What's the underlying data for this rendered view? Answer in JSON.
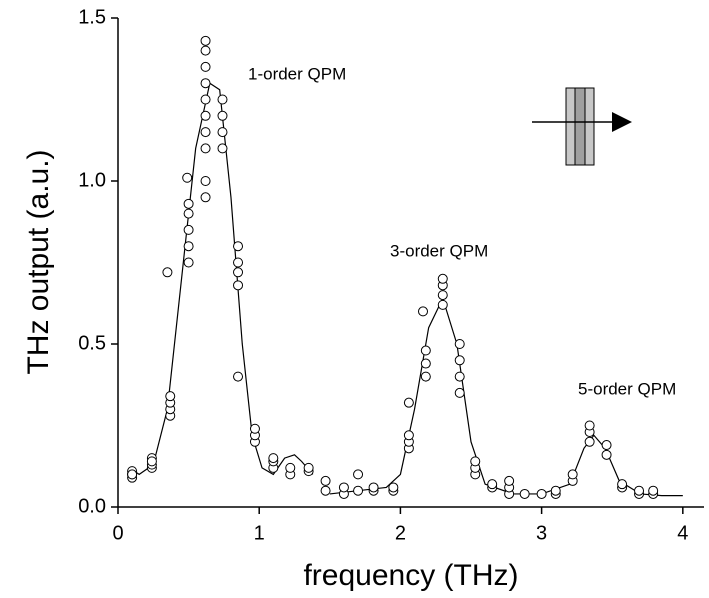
{
  "chart_data": {
    "type": "scatter",
    "xlabel": "frequency (THz)",
    "ylabel": "THz output (a.u.)",
    "xlim": [
      0,
      4.15
    ],
    "ylim": [
      0,
      1.5
    ],
    "xticks": [
      0,
      1,
      2,
      3,
      4
    ],
    "yticks": [
      {
        "value": 0,
        "label": "0.0"
      },
      0.5,
      {
        "value": 1,
        "label": "1.0"
      },
      1.5
    ],
    "annotations": [
      "1-order QPM",
      "3-order QPM",
      "5-order QPM"
    ],
    "series": [
      {
        "type": "scatter",
        "color": "#000000",
        "x": [
          0.1,
          0.1,
          0.1,
          0.1,
          0.24,
          0.24,
          0.24,
          0.24,
          0.37,
          0.37,
          0.37,
          0.37,
          0.35,
          0.5,
          0.5,
          0.5,
          0.5,
          0.5,
          0.49,
          0.62,
          0.62,
          0.62,
          0.62,
          0.62,
          0.62,
          0.62,
          0.62,
          0.62,
          0.62,
          0.74,
          0.74,
          0.74,
          0.74,
          0.85,
          0.85,
          0.85,
          0.85,
          0.85,
          0.97,
          0.97,
          0.97,
          1.1,
          1.1,
          1.1,
          1.22,
          1.22,
          1.35,
          1.35,
          1.47,
          1.47,
          1.6,
          1.6,
          1.7,
          1.7,
          1.81,
          1.81,
          1.95,
          1.95,
          2.06,
          2.06,
          2.06,
          2.06,
          2.18,
          2.18,
          2.18,
          2.16,
          2.3,
          2.3,
          2.3,
          2.3,
          2.42,
          2.42,
          2.42,
          2.42,
          2.53,
          2.53,
          2.53,
          2.65,
          2.65,
          2.77,
          2.77,
          2.77,
          2.88,
          3.0,
          3.1,
          3.1,
          3.22,
          3.22,
          3.34,
          3.34,
          3.34,
          3.46,
          3.46,
          3.57,
          3.57,
          3.69,
          3.69,
          3.79,
          3.79
        ],
        "values": [
          0.09,
          0.1,
          0.11,
          0.1,
          0.12,
          0.13,
          0.15,
          0.14,
          0.28,
          0.3,
          0.32,
          0.34,
          0.72,
          0.75,
          0.8,
          0.85,
          0.9,
          0.93,
          1.01,
          0.95,
          1.0,
          1.1,
          1.15,
          1.2,
          1.25,
          1.3,
          1.35,
          1.4,
          1.43,
          1.1,
          1.15,
          1.2,
          1.25,
          0.68,
          0.72,
          0.75,
          0.8,
          0.4,
          0.2,
          0.22,
          0.24,
          0.12,
          0.14,
          0.15,
          0.1,
          0.12,
          0.11,
          0.12,
          0.05,
          0.08,
          0.04,
          0.06,
          0.05,
          0.1,
          0.05,
          0.06,
          0.05,
          0.06,
          0.18,
          0.2,
          0.22,
          0.32,
          0.4,
          0.44,
          0.48,
          0.6,
          0.62,
          0.65,
          0.68,
          0.7,
          0.35,
          0.4,
          0.45,
          0.5,
          0.1,
          0.12,
          0.14,
          0.06,
          0.07,
          0.04,
          0.06,
          0.08,
          0.04,
          0.04,
          0.04,
          0.05,
          0.08,
          0.1,
          0.2,
          0.23,
          0.25,
          0.16,
          0.19,
          0.06,
          0.07,
          0.04,
          0.05,
          0.04,
          0.05
        ]
      },
      {
        "type": "line",
        "color": "#000000",
        "x": [
          0.08,
          0.15,
          0.25,
          0.35,
          0.45,
          0.55,
          0.65,
          0.72,
          0.8,
          0.88,
          0.95,
          1.02,
          1.1,
          1.18,
          1.25,
          1.3,
          1.38,
          1.44,
          1.5,
          1.7,
          1.9,
          2.0,
          2.1,
          2.2,
          2.3,
          2.4,
          2.5,
          2.6,
          2.8,
          3.0,
          3.2,
          3.3,
          3.37,
          3.45,
          3.55,
          3.7,
          3.85,
          4.0
        ],
        "values": [
          0.12,
          0.1,
          0.13,
          0.3,
          0.7,
          1.1,
          1.3,
          1.28,
          0.95,
          0.5,
          0.22,
          0.12,
          0.1,
          0.15,
          0.16,
          0.14,
          0.1,
          null,
          0.04,
          0.05,
          0.06,
          0.1,
          0.3,
          0.55,
          0.64,
          0.5,
          0.2,
          0.07,
          0.04,
          0.04,
          0.07,
          0.18,
          0.22,
          0.18,
          0.08,
          0.04,
          0.035,
          0.035
        ]
      }
    ]
  }
}
